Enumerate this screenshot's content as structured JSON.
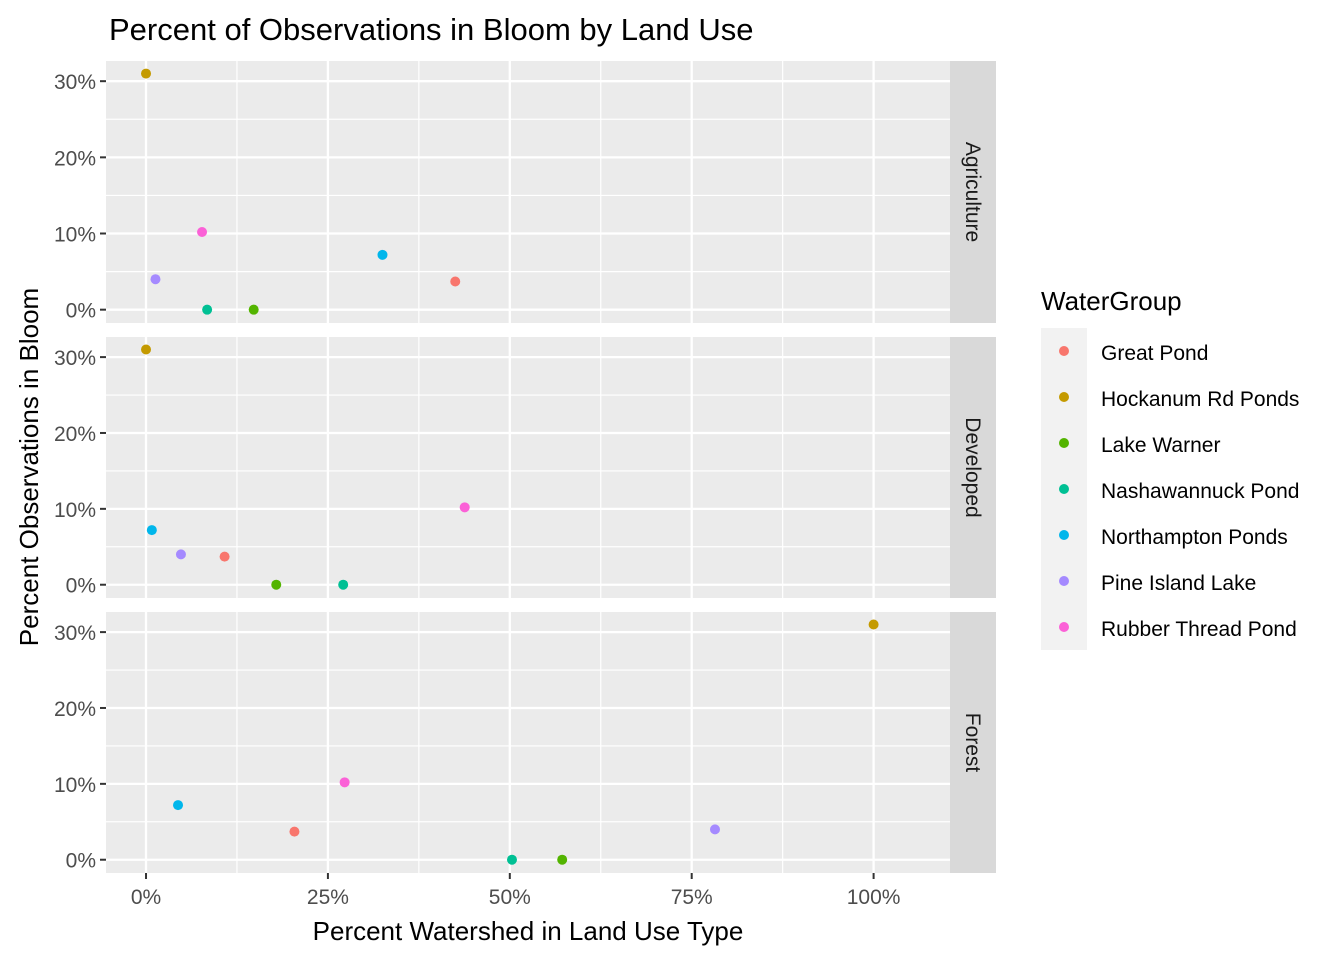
{
  "chart_data": {
    "type": "scatter",
    "title": "Percent of Observations in Bloom by Land Use",
    "xlabel": "Percent Watershed in Land Use Type",
    "ylabel": "Percent Observations in Bloom",
    "xlim": [
      -0.055,
      1.105
    ],
    "ylim": [
      -0.0175,
      0.3265
    ],
    "x_ticks": [
      0,
      0.25,
      0.5,
      0.75,
      1.0
    ],
    "x_tick_labels": [
      "0%",
      "25%",
      "50%",
      "75%",
      "100%"
    ],
    "y_ticks": [
      0,
      0.1,
      0.2,
      0.3
    ],
    "y_tick_labels": [
      "0%",
      "10%",
      "20%",
      "30%"
    ],
    "grid": true,
    "legend_position": "right",
    "legend": {
      "title": "WaterGroup",
      "entries": [
        {
          "name": "Great Pond",
          "color": "#F8766D"
        },
        {
          "name": "Hockanum Rd Ponds",
          "color": "#C49A00"
        },
        {
          "name": "Lake Warner",
          "color": "#53B400"
        },
        {
          "name": "Nashawannuck Pond",
          "color": "#00C094"
        },
        {
          "name": "Northampton Ponds",
          "color": "#00B6EB"
        },
        {
          "name": "Pine Island Lake",
          "color": "#A58AFF"
        },
        {
          "name": "Rubber Thread Pond",
          "color": "#FB61D7"
        }
      ]
    },
    "panels": [
      {
        "strip": "Agriculture",
        "points": [
          {
            "group": "Great Pond",
            "x": 0.425,
            "y": 0.037
          },
          {
            "group": "Hockanum Rd Ponds",
            "x": 0.0,
            "y": 0.31
          },
          {
            "group": "Lake Warner",
            "x": 0.148,
            "y": 0.0
          },
          {
            "group": "Nashawannuck Pond",
            "x": 0.084,
            "y": 0.0
          },
          {
            "group": "Northampton Ponds",
            "x": 0.325,
            "y": 0.072
          },
          {
            "group": "Pine Island Lake",
            "x": 0.013,
            "y": 0.04
          },
          {
            "group": "Rubber Thread Pond",
            "x": 0.077,
            "y": 0.102
          }
        ]
      },
      {
        "strip": "Developed",
        "points": [
          {
            "group": "Great Pond",
            "x": 0.108,
            "y": 0.037
          },
          {
            "group": "Hockanum Rd Ponds",
            "x": 0.0,
            "y": 0.31
          },
          {
            "group": "Lake Warner",
            "x": 0.179,
            "y": 0.0
          },
          {
            "group": "Nashawannuck Pond",
            "x": 0.271,
            "y": 0.0
          },
          {
            "group": "Northampton Ponds",
            "x": 0.008,
            "y": 0.072
          },
          {
            "group": "Pine Island Lake",
            "x": 0.048,
            "y": 0.04
          },
          {
            "group": "Rubber Thread Pond",
            "x": 0.438,
            "y": 0.102
          }
        ]
      },
      {
        "strip": "Forest",
        "points": [
          {
            "group": "Great Pond",
            "x": 0.204,
            "y": 0.037
          },
          {
            "group": "Hockanum Rd Ponds",
            "x": 1.0,
            "y": 0.31
          },
          {
            "group": "Lake Warner",
            "x": 0.572,
            "y": 0.0
          },
          {
            "group": "Nashawannuck Pond",
            "x": 0.503,
            "y": 0.0
          },
          {
            "group": "Northampton Ponds",
            "x": 0.044,
            "y": 0.072
          },
          {
            "group": "Pine Island Lake",
            "x": 0.782,
            "y": 0.04
          },
          {
            "group": "Rubber Thread Pond",
            "x": 0.273,
            "y": 0.102
          }
        ]
      }
    ]
  }
}
